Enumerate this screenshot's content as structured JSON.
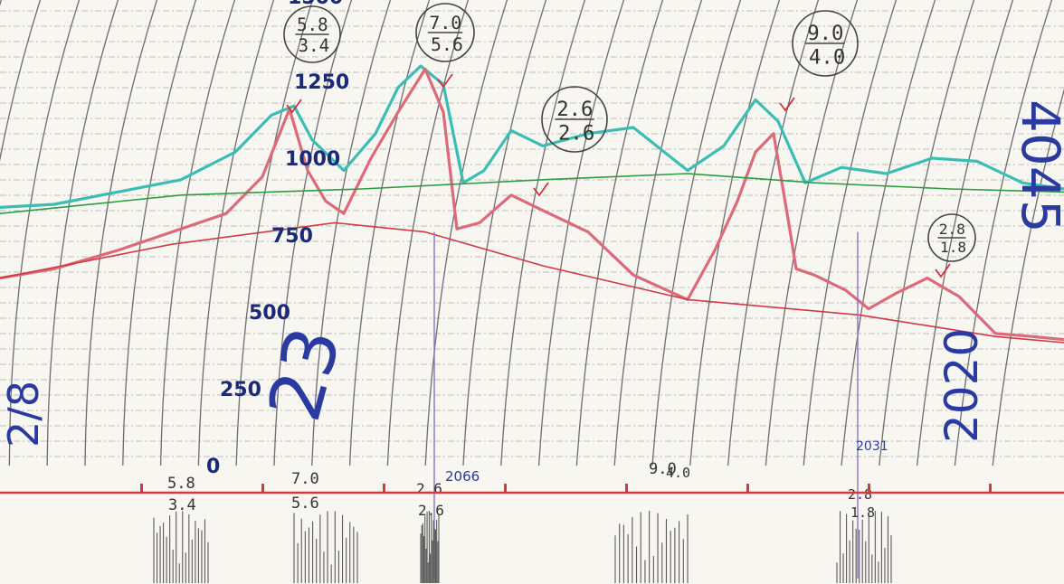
{
  "chart_data": {
    "type": "line",
    "title": "",
    "xlabel": "",
    "ylabel": "",
    "ylim": [
      0,
      1500
    ],
    "y_ticks": [
      {
        "value": 1250,
        "label": "1250"
      },
      {
        "value": 1000,
        "label": "1000"
      },
      {
        "value": 750,
        "label": "750"
      },
      {
        "value": 500,
        "label": "500"
      },
      {
        "value": 250,
        "label": "250"
      },
      {
        "value": 0,
        "label": "0"
      }
    ],
    "y_ticks_partial": [
      {
        "value": 1500,
        "label": "1500"
      }
    ],
    "series": [
      {
        "color": "#3bbdb3",
        "x": [
          0,
          60,
          130,
          200,
          260,
          300,
          325,
          345,
          380,
          415,
          440,
          465,
          490,
          512,
          535,
          565,
          600,
          650,
          700,
          760,
          800,
          835,
          860,
          890,
          930,
          980,
          1030,
          1080,
          1130,
          1176
        ],
        "values": [
          840,
          850,
          890,
          930,
          1020,
          1140,
          1170,
          1060,
          960,
          1080,
          1230,
          1300,
          1240,
          920,
          960,
          1090,
          1040,
          1080,
          1100,
          960,
          1040,
          1190,
          1120,
          920,
          970,
          950,
          1000,
          990,
          920,
          900
        ]
      },
      {
        "color": "#dd6a79",
        "x": [
          0,
          60,
          130,
          190,
          250,
          290,
          320,
          340,
          360,
          380,
          410,
          440,
          470,
          490,
          505,
          530,
          565,
          600,
          650,
          700,
          760,
          790,
          815,
          835,
          855,
          870,
          880,
          900,
          935,
          960,
          990,
          1025,
          1060,
          1100,
          1140,
          1176
        ],
        "values": [
          610,
          640,
          700,
          760,
          820,
          940,
          1160,
          960,
          860,
          820,
          1000,
          1150,
          1290,
          1150,
          770,
          790,
          880,
          830,
          760,
          620,
          540,
          700,
          860,
          1020,
          1080,
          820,
          640,
          620,
          570,
          510,
          560,
          610,
          550,
          430,
          420,
          410
        ]
      },
      {
        "color": "#2e9b40",
        "x": [
          0,
          200,
          400,
          600,
          760,
          900,
          1050,
          1176
        ],
        "values": [
          820,
          880,
          900,
          930,
          950,
          920,
          900,
          890
        ]
      },
      {
        "color": "#cf3a45",
        "x": [
          0,
          190,
          370,
          470,
          600,
          760,
          950,
          1100,
          1176
        ],
        "values": [
          610,
          720,
          790,
          760,
          650,
          540,
          490,
          420,
          400
        ]
      }
    ],
    "annotations": [
      {
        "text": "5.8",
        "group": "top",
        "n": 0
      },
      {
        "text": "3.4",
        "group": "top",
        "n": 1
      },
      {
        "text": "7.0",
        "group": "top",
        "n": 2
      },
      {
        "text": "5.6",
        "group": "top",
        "n": 3
      },
      {
        "text": "2.6",
        "group": "top",
        "n": 4
      },
      {
        "text": "2.6",
        "group": "top",
        "n": 5
      },
      {
        "text": "9.0",
        "group": "top",
        "n": 6
      },
      {
        "text": "4.0",
        "group": "top",
        "n": 7
      },
      {
        "text": "2.8",
        "group": "top",
        "n": 8
      },
      {
        "text": "1.8",
        "group": "top",
        "n": 9
      },
      {
        "text": "5.8",
        "group": "bottom",
        "n": 0
      },
      {
        "text": "3.4",
        "group": "bottom",
        "n": 1
      },
      {
        "text": "7.0",
        "group": "bottom",
        "n": 2
      },
      {
        "text": "5.6",
        "group": "bottom",
        "n": 3
      },
      {
        "text": "2.6",
        "group": "bottom",
        "n": 4
      },
      {
        "text": "2.6",
        "group": "bottom",
        "n": 5
      },
      {
        "text": "2066",
        "group": "bottom",
        "n": 6
      },
      {
        "text": "9.0",
        "group": "bottom",
        "n": 7
      },
      {
        "text": "4.0",
        "group": "bottom",
        "n": 8
      },
      {
        "text": "2.8",
        "group": "bottom",
        "n": 9
      },
      {
        "text": "1.8",
        "group": "bottom",
        "n": 10
      },
      {
        "text": "2031",
        "group": "bottom",
        "n": 11
      },
      {
        "text": "4045",
        "group": "side",
        "n": 0
      },
      {
        "text": "2020",
        "group": "side",
        "n": 1
      },
      {
        "text": "23",
        "group": "side",
        "n": 2
      },
      {
        "text": "2/8",
        "group": "side",
        "n": 3
      }
    ],
    "grid": true,
    "legend": "none"
  }
}
